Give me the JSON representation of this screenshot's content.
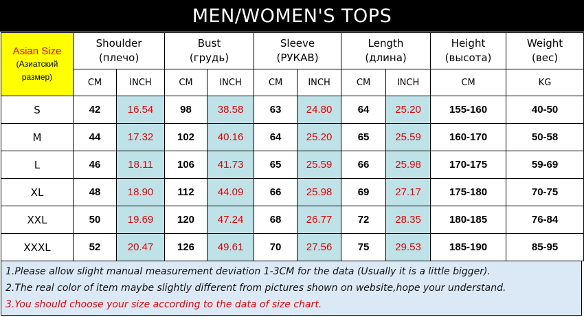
{
  "title": "MEN/WOMEN'S TOPS",
  "asian_size": {
    "label": "Asian Size",
    "sub1": "(Азиатский",
    "sub2": "размер)"
  },
  "groups": [
    {
      "name": "Shoulder",
      "sub": "(плечо)",
      "units": [
        "CM",
        "INCH"
      ]
    },
    {
      "name": "Bust",
      "sub": "(грудь)",
      "units": [
        "CM",
        "INCH"
      ]
    },
    {
      "name": "Sleeve",
      "sub": "(РУКАВ)",
      "units": [
        "CM",
        "INCH"
      ]
    },
    {
      "name": "Length",
      "sub": "(длина)",
      "units": [
        "CM",
        "INCH"
      ]
    },
    {
      "name": "Height",
      "sub": "(высота)",
      "units": [
        "CM"
      ]
    },
    {
      "name": "Weight",
      "sub": "(вес)",
      "units": [
        "KG"
      ]
    }
  ],
  "rows": [
    {
      "size": "S",
      "shoulder_cm": "42",
      "shoulder_inch": "16.54",
      "bust_cm": "98",
      "bust_inch": "38.58",
      "sleeve_cm": "63",
      "sleeve_inch": "24.80",
      "length_cm": "64",
      "length_inch": "25.20",
      "height": "155-160",
      "weight": "40-50"
    },
    {
      "size": "M",
      "shoulder_cm": "44",
      "shoulder_inch": "17.32",
      "bust_cm": "102",
      "bust_inch": "40.16",
      "sleeve_cm": "64",
      "sleeve_inch": "25.20",
      "length_cm": "65",
      "length_inch": "25.59",
      "height": "160-170",
      "weight": "50-58"
    },
    {
      "size": "L",
      "shoulder_cm": "46",
      "shoulder_inch": "18.11",
      "bust_cm": "106",
      "bust_inch": "41.73",
      "sleeve_cm": "65",
      "sleeve_inch": "25.59",
      "length_cm": "66",
      "length_inch": "25.98",
      "height": "170-175",
      "weight": "59-69"
    },
    {
      "size": "XL",
      "shoulder_cm": "48",
      "shoulder_inch": "18.90",
      "bust_cm": "112",
      "bust_inch": "44.09",
      "sleeve_cm": "66",
      "sleeve_inch": "25.98",
      "length_cm": "69",
      "length_inch": "27.17",
      "height": "175-180",
      "weight": "70-75"
    },
    {
      "size": "XXL",
      "shoulder_cm": "50",
      "shoulder_inch": "19.69",
      "bust_cm": "120",
      "bust_inch": "47.24",
      "sleeve_cm": "68",
      "sleeve_inch": "26.77",
      "length_cm": "72",
      "length_inch": "28.35",
      "height": "180-185",
      "weight": "76-84"
    },
    {
      "size": "XXXL",
      "shoulder_cm": "52",
      "shoulder_inch": "20.47",
      "bust_cm": "126",
      "bust_inch": "49.61",
      "sleeve_cm": "70",
      "sleeve_inch": "27.56",
      "length_cm": "75",
      "length_inch": "29.53",
      "height": "185-190",
      "weight": "85-95"
    }
  ],
  "notes": [
    "1.Please allow slight manual measurement deviation 1-3CM for the data (Usually it is a little bigger).",
    "2.The real color of item maybe slightly different from pictures shown on website,hope your understand.",
    "3.You should choose your size according to the data of size chart."
  ],
  "colors": {
    "title_bg": "#000000",
    "asian_size_bg": "#ffff00",
    "inch_bg": "#bfe2e8",
    "inch_text": "#e30000",
    "notes_bg": "#dbe9f6",
    "highlight_note": "#e60000"
  }
}
